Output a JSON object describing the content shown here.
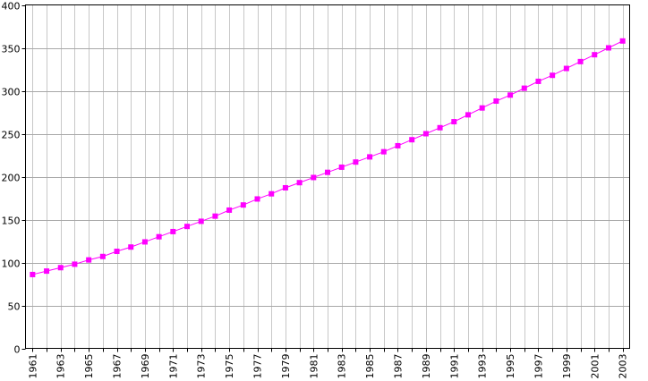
{
  "chart_data": {
    "type": "line",
    "title": "",
    "xlabel": "",
    "ylabel": "",
    "x": [
      1961,
      1962,
      1963,
      1964,
      1965,
      1966,
      1967,
      1968,
      1969,
      1970,
      1971,
      1972,
      1973,
      1974,
      1975,
      1976,
      1977,
      1978,
      1979,
      1980,
      1981,
      1982,
      1983,
      1984,
      1985,
      1986,
      1987,
      1988,
      1989,
      1990,
      1991,
      1992,
      1993,
      1994,
      1995,
      1996,
      1997,
      1998,
      1999,
      2000,
      2001,
      2002,
      2003
    ],
    "xlim": [
      1960.5,
      2003.5
    ],
    "ylim": [
      0,
      400
    ],
    "x_tick_labels": [
      "1961",
      "1963",
      "1965",
      "1967",
      "1969",
      "1971",
      "1973",
      "1975",
      "1977",
      "1979",
      "1981",
      "1983",
      "1985",
      "1987",
      "1989",
      "1991",
      "1993",
      "1995",
      "1997",
      "1999",
      "2001",
      "2003"
    ],
    "y_tick_labels": [
      "0",
      "50",
      "100",
      "150",
      "200",
      "250",
      "300",
      "350",
      "400"
    ],
    "grid": true,
    "series": [
      {
        "color": "#ff00ff",
        "marker": "square",
        "values": [
          86,
          90,
          94,
          98,
          103,
          107,
          113,
          118,
          124,
          130,
          136,
          142,
          148,
          154,
          161,
          167,
          174,
          180,
          187,
          193,
          199,
          205,
          211,
          217,
          223,
          229,
          236,
          243,
          250,
          257,
          264,
          272,
          280,
          288,
          295,
          303,
          311,
          318,
          326,
          334,
          342,
          350,
          358
        ]
      }
    ]
  }
}
